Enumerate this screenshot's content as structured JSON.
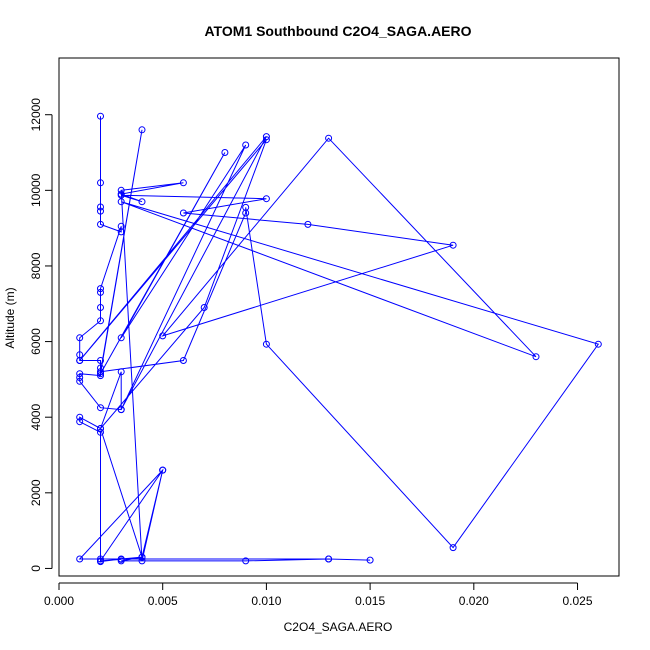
{
  "chart_data": {
    "type": "line",
    "title": "ATOM1 Southbound C2O4_SAGA.AERO",
    "xlabel": "C2O4_SAGA.AERO",
    "ylabel": "Altitude (m)",
    "xlim": [
      0,
      0.027
    ],
    "ylim": [
      -200,
      13500
    ],
    "x_ticks": [
      0,
      0.005,
      0.01,
      0.015,
      0.02,
      0.025
    ],
    "x_tick_labels": [
      "0.000",
      "0.005",
      "0.010",
      "0.015",
      "0.020",
      "0.025"
    ],
    "y_ticks": [
      0,
      2000,
      4000,
      6000,
      8000,
      10000,
      12000
    ],
    "y_tick_labels": [
      "0",
      "2000",
      "4000",
      "6000",
      "8000",
      "10000",
      "12000"
    ],
    "series_color": "#0000ff",
    "grid": false,
    "legend": "none",
    "series": [
      {
        "marker": "open-circle",
        "points": [
          [
            0.002,
            11960
          ],
          [
            0.002,
            10200
          ],
          [
            0.002,
            9560
          ],
          [
            0.002,
            9450
          ],
          [
            0.002,
            9100
          ],
          [
            0.003,
            8900
          ],
          [
            0.003,
            9050
          ],
          [
            0.002,
            7400
          ],
          [
            0.002,
            7300
          ],
          [
            0.002,
            6900
          ],
          [
            0.002,
            6550
          ],
          [
            0.001,
            6100
          ],
          [
            0.001,
            5650
          ],
          [
            0.001,
            5500
          ],
          [
            0.002,
            5500
          ],
          [
            0.002,
            5300
          ],
          [
            0.002,
            5200
          ],
          [
            0.002,
            5100
          ],
          [
            0.001,
            5150
          ],
          [
            0.001,
            5050
          ],
          [
            0.001,
            4950
          ],
          [
            0.002,
            4250
          ],
          [
            0.003,
            4200
          ],
          [
            0.003,
            5200
          ],
          [
            0.002,
            3700
          ],
          [
            0.001,
            4000
          ],
          [
            0.001,
            3880
          ],
          [
            0.002,
            3600
          ],
          [
            0.002,
            250
          ],
          [
            0.002,
            180
          ],
          [
            0.003,
            250
          ],
          [
            0.004,
            300
          ],
          [
            0.003,
            200
          ],
          [
            0.009,
            200
          ],
          [
            0.013,
            250
          ],
          [
            0.015,
            220
          ],
          [
            0.013,
            250
          ],
          [
            0.001,
            250
          ],
          [
            0.005,
            2600
          ],
          [
            0.004,
            200
          ],
          [
            0.003,
            10000
          ],
          [
            0.006,
            10200
          ],
          [
            0.003,
            9900
          ],
          [
            0.004,
            9700
          ],
          [
            0.003,
            9870
          ],
          [
            0.01,
            9780
          ],
          [
            0.006,
            9400
          ],
          [
            0.012,
            9100
          ],
          [
            0.019,
            8550
          ],
          [
            0.005,
            6150
          ],
          [
            0.013,
            11380
          ],
          [
            0.023,
            5600
          ],
          [
            0.003,
            9700
          ],
          [
            0.026,
            5930
          ],
          [
            0.019,
            550
          ],
          [
            0.01,
            5930
          ],
          [
            0.009,
            9550
          ],
          [
            0.009,
            9400
          ],
          [
            0.006,
            5500
          ],
          [
            0.002,
            5200
          ],
          [
            0.004,
            11600
          ],
          [
            0.002,
            5150
          ],
          [
            0.008,
            11000
          ],
          [
            0.003,
            6100
          ],
          [
            0.009,
            11200
          ],
          [
            0.003,
            4200
          ],
          [
            0.01,
            11420
          ],
          [
            0.001,
            5500
          ],
          [
            0.01,
            11340
          ],
          [
            0.007,
            6900
          ],
          [
            0.002,
            3700
          ],
          [
            0.004,
            300
          ],
          [
            0.005,
            2600
          ],
          [
            0.002,
            200
          ],
          [
            0.003,
            240
          ]
        ]
      }
    ]
  }
}
